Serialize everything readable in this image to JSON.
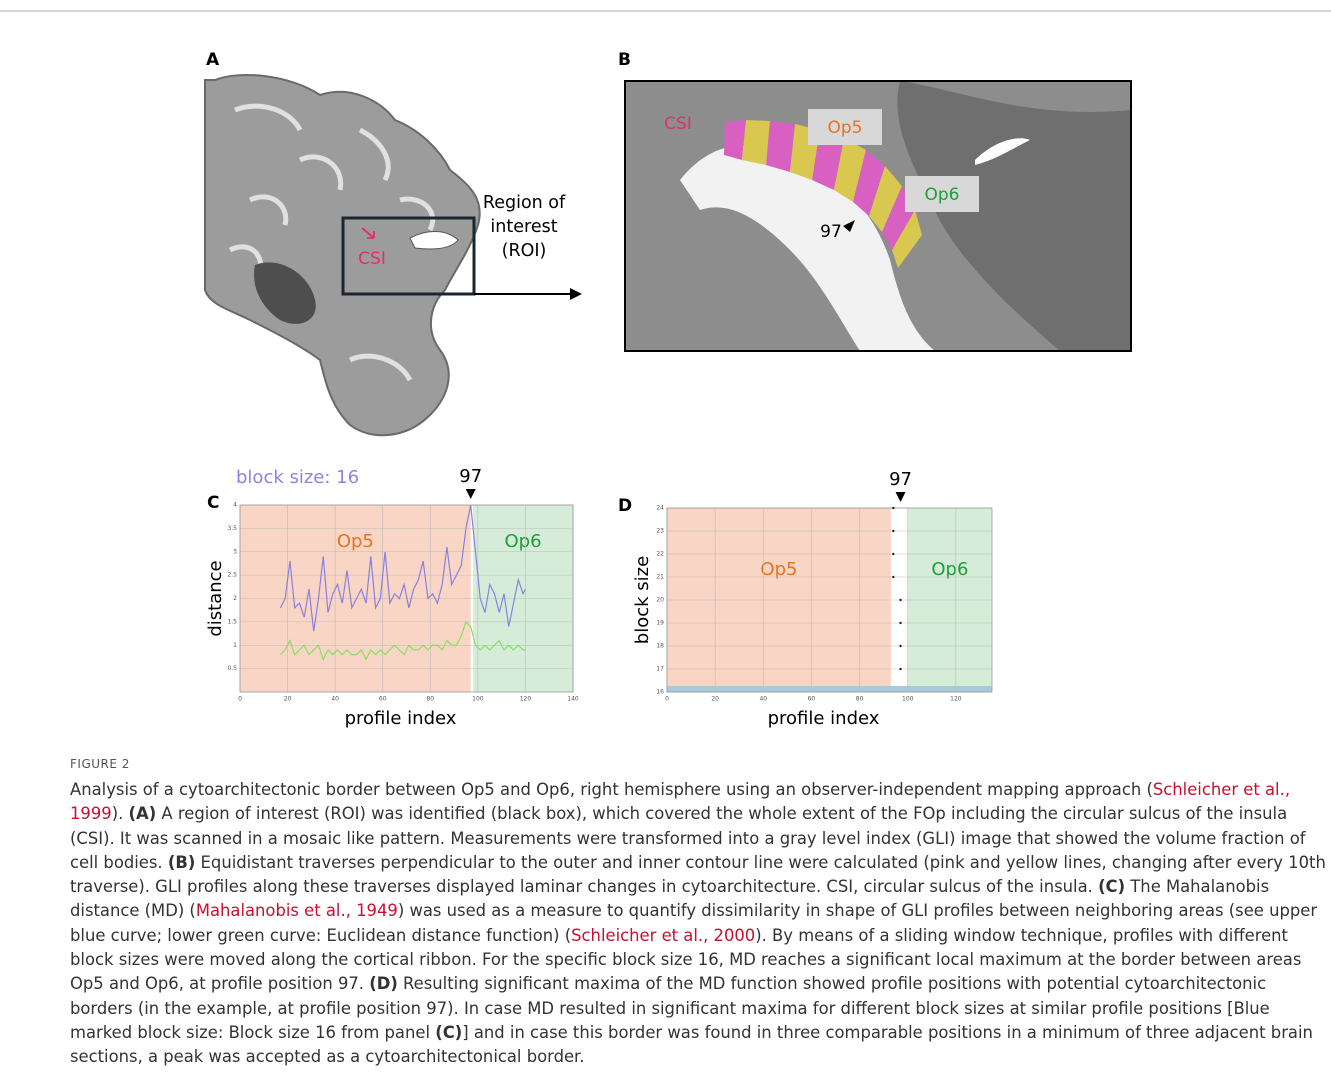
{
  "figure": {
    "label": "FIGURE 2",
    "panels": {
      "A": {
        "label": "A",
        "csi": "CSI",
        "roi_lines": [
          "Region of",
          "interest",
          "(ROI)"
        ]
      },
      "B": {
        "label": "B",
        "csi": "CSI",
        "op5": "Op5",
        "op6": "Op6",
        "position": "97"
      }
    },
    "caption": [
      {
        "text": "Analysis of a cytoarchitectonic border between Op5 and Op6, right hemisphere using an observer-independent mapping approach (",
        "style": "plain"
      },
      {
        "text": "Schleicher et al., 1999",
        "style": "link"
      },
      {
        "text": "). ",
        "style": "plain"
      },
      {
        "text": "(A)",
        "style": "bold"
      },
      {
        "text": " A region of interest (ROI) was identified (black box), which covered the whole extent of the FOp including the circular sulcus of the insula (CSI). It was scanned in a mosaic like pattern. Measurements were transformed into a gray level index (GLI) image that showed the volume fraction of cell bodies. ",
        "style": "plain"
      },
      {
        "text": "(B)",
        "style": "bold"
      },
      {
        "text": " Equidistant traverses perpendicular to the outer and inner contour line were calculated (pink and yellow lines, changing after every 10th traverse). GLI profiles along these traverses displayed laminar changes in cytoarchitecture. CSI, circular sulcus of the insula. ",
        "style": "plain"
      },
      {
        "text": "(C)",
        "style": "bold"
      },
      {
        "text": " The Mahalanobis distance (MD) (",
        "style": "plain"
      },
      {
        "text": "Mahalanobis et al., 1949",
        "style": "link"
      },
      {
        "text": ") was used as a measure to quantify dissimilarity in shape of GLI profiles between neighboring areas (see upper blue curve; lower green curve: Euclidean distance function) (",
        "style": "plain"
      },
      {
        "text": "Schleicher et al., 2000",
        "style": "link"
      },
      {
        "text": "). By means of a sliding window technique, profiles with different block sizes were moved along the cortical ribbon. For the specific block size 16, MD reaches a significant local maximum at the border between areas Op5 and Op6, at profile position 97. ",
        "style": "plain"
      },
      {
        "text": "(D)",
        "style": "bold"
      },
      {
        "text": " Resulting significant maxima of the MD function showed profile positions with potential cytoarchitectonic borders (in the example, at profile position 97). In case MD resulted in significant maxima for different block sizes at similar profile positions [Blue marked block size: Block size 16 from panel ",
        "style": "plain"
      },
      {
        "text": "(C)",
        "style": "bold"
      },
      {
        "text": "] and in case this border was found in three comparable positions in a minimum of three adjacent brain sections, a peak was accepted as a cytoarchitectonical border.",
        "style": "plain"
      }
    ]
  },
  "chart_data": [
    {
      "type": "line",
      "panel_label": "C",
      "title": "block size: 16",
      "xlabel": "profile index",
      "ylabel": "distance",
      "xlim": [
        0,
        140
      ],
      "ylim": [
        0,
        4
      ],
      "xticks": [
        0,
        20,
        40,
        60,
        80,
        100,
        120,
        140
      ],
      "yticks": [
        0.5,
        1,
        1.5,
        2,
        2.5,
        3,
        3.5,
        4
      ],
      "grid": true,
      "regions": [
        {
          "name": "Op5",
          "from": 0,
          "to": 97,
          "color": "#f9d5c5",
          "text_color": "#e8731e"
        },
        {
          "name": "Op6",
          "from": 98,
          "to": 140,
          "color": "#d5edd8",
          "text_color": "#1f9e3a"
        }
      ],
      "annotation": {
        "text": "97",
        "x": 97
      },
      "series": [
        {
          "color": "#8a80e0",
          "x": [
            17,
            19,
            21,
            23,
            25,
            27,
            29,
            31,
            33,
            35,
            37,
            39,
            41,
            43,
            45,
            47,
            49,
            51,
            53,
            55,
            57,
            59,
            61,
            63,
            65,
            67,
            69,
            71,
            73,
            75,
            77,
            79,
            81,
            83,
            85,
            87,
            89,
            91,
            93,
            95,
            97,
            99,
            101,
            103,
            105,
            107,
            109,
            111,
            113,
            115,
            117,
            119,
            120
          ],
          "values": [
            1.8,
            2.0,
            2.8,
            1.8,
            1.9,
            1.6,
            2.2,
            1.3,
            2.0,
            2.9,
            1.7,
            2.1,
            2.3,
            1.9,
            2.6,
            1.8,
            2.0,
            2.2,
            1.9,
            2.9,
            1.8,
            2.0,
            3.0,
            1.9,
            2.1,
            2.0,
            2.3,
            1.8,
            2.2,
            2.4,
            2.8,
            2.0,
            2.1,
            1.9,
            2.3,
            3.1,
            2.3,
            2.5,
            2.7,
            3.5,
            4.0,
            3.0,
            2.0,
            1.7,
            2.3,
            2.1,
            1.7,
            2.1,
            1.4,
            1.9,
            2.4,
            2.1,
            2.2
          ]
        },
        {
          "color": "#86e060",
          "x": [
            17,
            19,
            21,
            23,
            25,
            27,
            29,
            31,
            33,
            35,
            37,
            39,
            41,
            43,
            45,
            47,
            49,
            51,
            53,
            55,
            57,
            59,
            61,
            63,
            65,
            67,
            69,
            71,
            73,
            75,
            77,
            79,
            81,
            83,
            85,
            87,
            89,
            91,
            93,
            95,
            97,
            99,
            101,
            103,
            105,
            107,
            109,
            111,
            113,
            115,
            117,
            119,
            120
          ],
          "values": [
            0.8,
            0.9,
            1.1,
            0.8,
            0.9,
            1.0,
            0.8,
            0.9,
            1.0,
            0.7,
            0.9,
            0.8,
            0.9,
            0.8,
            0.9,
            0.8,
            0.8,
            0.9,
            0.7,
            0.9,
            0.8,
            0.9,
            0.8,
            0.9,
            1.0,
            0.9,
            0.8,
            1.0,
            0.9,
            0.9,
            1.0,
            0.9,
            1.0,
            1.0,
            0.9,
            1.1,
            1.0,
            1.0,
            1.2,
            1.5,
            1.4,
            1.0,
            0.9,
            1.0,
            0.9,
            1.0,
            1.1,
            0.9,
            1.0,
            0.9,
            1.0,
            0.9,
            0.9
          ]
        }
      ]
    },
    {
      "type": "scatter",
      "panel_label": "D",
      "xlabel": "profile index",
      "ylabel": "block size",
      "xlim": [
        0,
        135
      ],
      "ylim": [
        16,
        24
      ],
      "xticks": [
        0,
        20,
        40,
        60,
        80,
        100,
        120
      ],
      "yticks": [
        16,
        17,
        18,
        19,
        20,
        21,
        22,
        23,
        24
      ],
      "grid": true,
      "regions": [
        {
          "name": "Op5",
          "from": 0,
          "to": 93,
          "color": "#f9d5c5",
          "text_color": "#e8731e"
        },
        {
          "name": "Op6",
          "from": 100,
          "to": 135,
          "color": "#d5edd8",
          "text_color": "#1f9e3a"
        }
      ],
      "annotation": {
        "text": "97",
        "x": 97
      },
      "series": [
        {
          "color": "#222222",
          "x": [
            97,
            97,
            97,
            97,
            94,
            94,
            94,
            94
          ],
          "values": [
            17,
            18,
            19,
            20,
            21,
            22,
            23,
            24
          ]
        }
      ]
    }
  ]
}
